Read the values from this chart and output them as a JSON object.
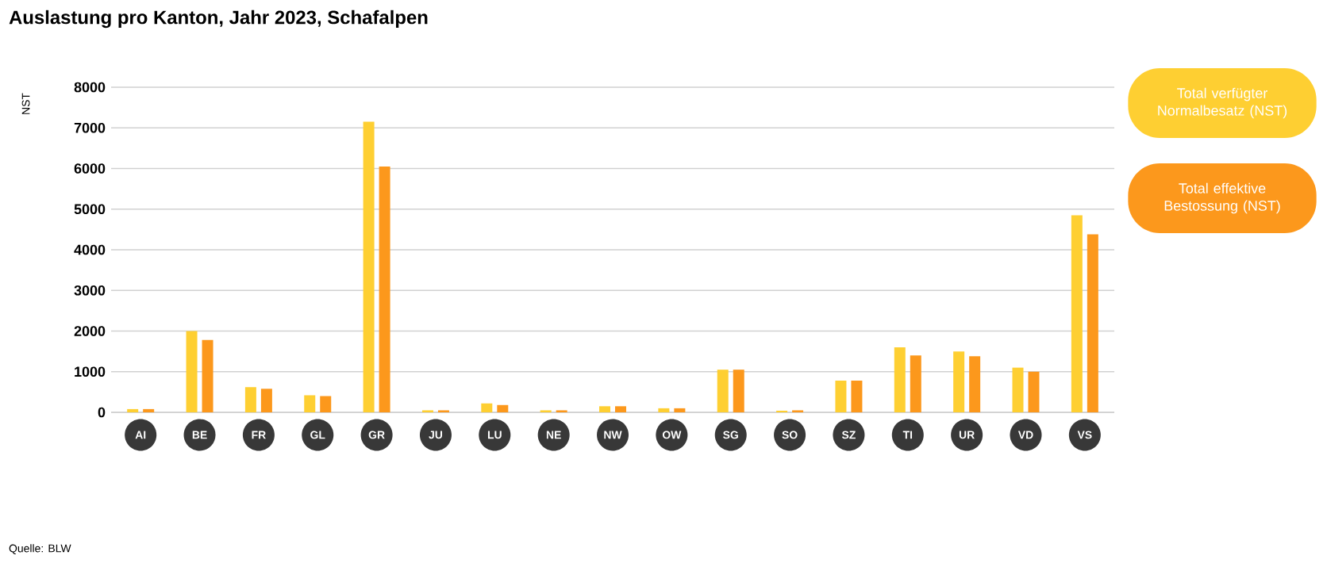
{
  "chart_data": {
    "type": "bar",
    "title": "Auslastung pro Kanton, Jahr 2023, Schafalpen",
    "ylabel": "NST",
    "categories": [
      "AI",
      "BE",
      "FR",
      "GL",
      "GR",
      "JU",
      "LU",
      "NE",
      "NW",
      "OW",
      "SG",
      "SO",
      "SZ",
      "TI",
      "UR",
      "VD",
      "VS"
    ],
    "series": [
      {
        "name": "Total verfügter Normalbesatz (NST)",
        "color": "#fecf32",
        "values": [
          80,
          2000,
          620,
          420,
          7150,
          50,
          220,
          50,
          150,
          100,
          1050,
          40,
          780,
          1600,
          1500,
          1100,
          4850
        ]
      },
      {
        "name": "Total effektive Bestossung (NST)",
        "color": "#fc981c",
        "values": [
          80,
          1780,
          580,
          400,
          6050,
          50,
          180,
          50,
          150,
          100,
          1050,
          50,
          780,
          1400,
          1380,
          1000,
          4380
        ]
      }
    ],
    "ylim": [
      0,
      8000
    ],
    "yticks": [
      0,
      1000,
      2000,
      3000,
      4000,
      5000,
      6000,
      7000,
      8000
    ],
    "grid": "y",
    "legend": "right",
    "annotations": [
      "Quelle: BLW"
    ]
  }
}
